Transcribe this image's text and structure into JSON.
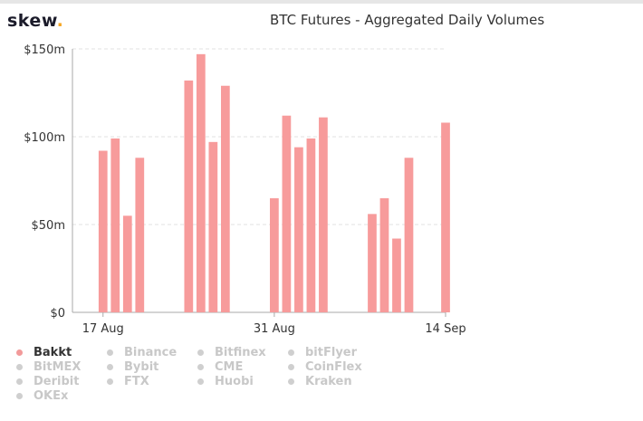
{
  "header": {
    "logo_text": "skew",
    "logo_dot": ".",
    "title": "BTC Futures - Aggregated Daily Volumes"
  },
  "colors": {
    "bar": "#f79b9b",
    "grid": "#e2e2e2",
    "axis": "#aaaaaa",
    "text": "#333333",
    "logo_accent": "#f5a623",
    "legend_inactive": "#c8c8c8"
  },
  "chart_data": {
    "type": "bar",
    "title": "BTC Futures - Aggregated Daily Volumes",
    "xlabel": "",
    "ylabel": "",
    "ylim": [
      0,
      150
    ],
    "y_ticks": [
      {
        "value": 0,
        "label": "$0"
      },
      {
        "value": 50,
        "label": "$50m"
      },
      {
        "value": 100,
        "label": "$100m"
      },
      {
        "value": 150,
        "label": "$150m"
      }
    ],
    "x_ticks": [
      {
        "date": "2020-08-17",
        "label": "17 Aug"
      },
      {
        "date": "2020-08-31",
        "label": "31 Aug"
      },
      {
        "date": "2020-09-14",
        "label": "14 Sep"
      }
    ],
    "x_range": [
      "2020-08-15",
      "2020-09-14"
    ],
    "grid": true,
    "legend_position": "bottom-left",
    "series": [
      {
        "name": "Bakkt",
        "points": [
          {
            "date": "2020-08-17",
            "value": 92
          },
          {
            "date": "2020-08-18",
            "value": 99
          },
          {
            "date": "2020-08-19",
            "value": 55
          },
          {
            "date": "2020-08-20",
            "value": 88
          },
          {
            "date": "2020-08-24",
            "value": 132
          },
          {
            "date": "2020-08-25",
            "value": 147
          },
          {
            "date": "2020-08-26",
            "value": 97
          },
          {
            "date": "2020-08-27",
            "value": 129
          },
          {
            "date": "2020-08-31",
            "value": 65
          },
          {
            "date": "2020-09-01",
            "value": 112
          },
          {
            "date": "2020-09-02",
            "value": 94
          },
          {
            "date": "2020-09-03",
            "value": 99
          },
          {
            "date": "2020-09-04",
            "value": 111
          },
          {
            "date": "2020-09-08",
            "value": 56
          },
          {
            "date": "2020-09-09",
            "value": 65
          },
          {
            "date": "2020-09-10",
            "value": 42
          },
          {
            "date": "2020-09-11",
            "value": 88
          },
          {
            "date": "2020-09-14",
            "value": 108
          }
        ]
      }
    ]
  },
  "legend": [
    {
      "label": "Bakkt",
      "active": true
    },
    {
      "label": "Binance",
      "active": false
    },
    {
      "label": "Bitfinex",
      "active": false
    },
    {
      "label": "bitFlyer",
      "active": false
    },
    {
      "label": "BitMEX",
      "active": false
    },
    {
      "label": "Bybit",
      "active": false
    },
    {
      "label": "CME",
      "active": false
    },
    {
      "label": "CoinFlex",
      "active": false
    },
    {
      "label": "Deribit",
      "active": false
    },
    {
      "label": "FTX",
      "active": false
    },
    {
      "label": "Huobi",
      "active": false
    },
    {
      "label": "Kraken",
      "active": false
    },
    {
      "label": "OKEx",
      "active": false
    }
  ]
}
